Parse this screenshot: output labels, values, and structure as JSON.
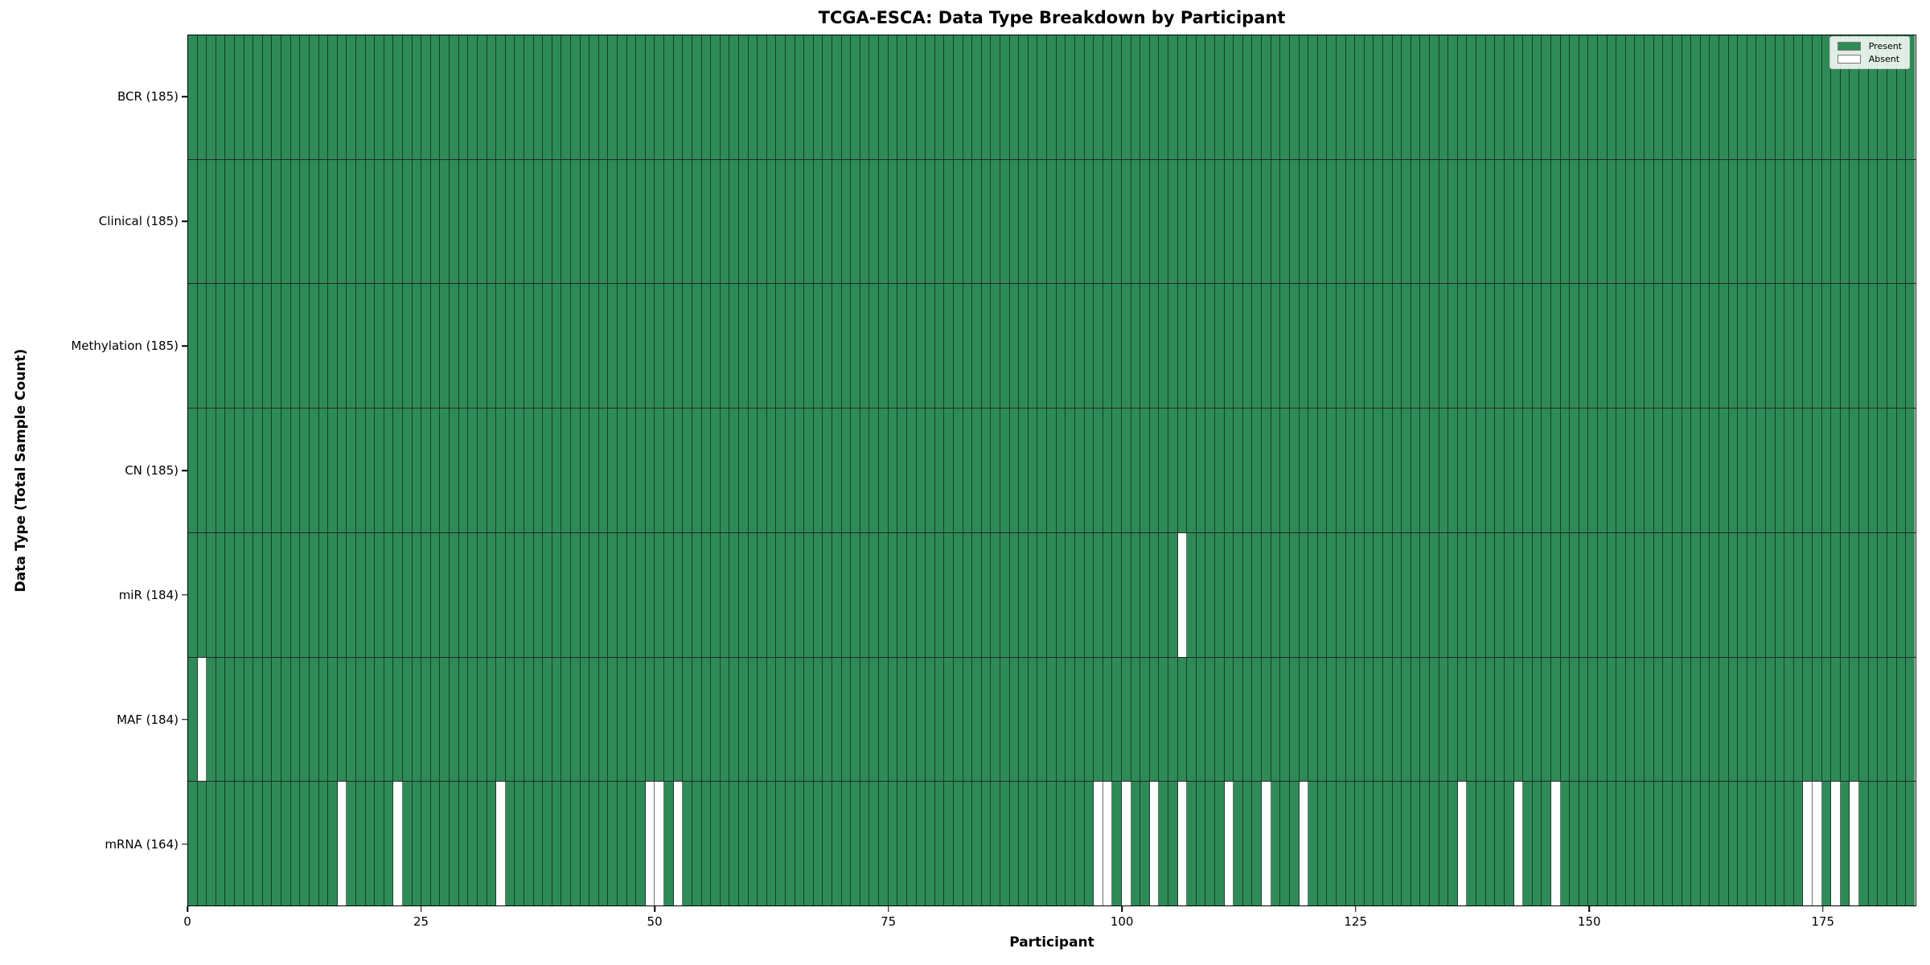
{
  "title": "TCGA-ESCA: Data Type Breakdown by Participant",
  "axes": {
    "x_label": "Participant",
    "y_label": "Data Type (Total Sample Count)"
  },
  "legend": {
    "position": "top-right",
    "entries": [
      {
        "label": "Present",
        "color": "#2e8b57"
      },
      {
        "label": "Absent",
        "color": "#ffffff"
      }
    ]
  },
  "colors": {
    "present": "#2e8b57",
    "absent": "#ffffff",
    "cell_edge": "rgba(0,0,0,0.55)",
    "row_divider": "rgba(0,0,0,0.85)",
    "spine": "#000000"
  },
  "chart_data": {
    "type": "heatmap",
    "encoding": "presence-absence matrix: green cell = data type present for participant, white cell = absent",
    "title": "TCGA-ESCA: Data Type Breakdown by Participant",
    "xlabel": "Participant",
    "ylabel": "Data Type (Total Sample Count)",
    "n_participants": 185,
    "x_range": [
      0,
      185
    ],
    "x_ticks": [
      0,
      25,
      50,
      75,
      100,
      125,
      150,
      175
    ],
    "grid": false,
    "legend_position": "upper right",
    "rows": [
      {
        "name": "BCR",
        "label": "BCR (185)",
        "total": 185,
        "absent_participants": []
      },
      {
        "name": "Clinical",
        "label": "Clinical (185)",
        "total": 185,
        "absent_participants": []
      },
      {
        "name": "Methylation",
        "label": "Methylation (185)",
        "total": 185,
        "absent_participants": []
      },
      {
        "name": "CN",
        "label": "CN (185)",
        "total": 185,
        "absent_participants": []
      },
      {
        "name": "miR",
        "label": "miR (184)",
        "total": 184,
        "absent_participants": [
          106
        ]
      },
      {
        "name": "MAF",
        "label": "MAF (184)",
        "total": 184,
        "absent_participants": [
          1
        ]
      },
      {
        "name": "mRNA",
        "label": "mRNA (164)",
        "total": 164,
        "absent_participants": [
          16,
          22,
          33,
          49,
          50,
          52,
          97,
          98,
          100,
          103,
          106,
          111,
          115,
          119,
          136,
          142,
          146,
          173,
          174,
          176,
          178
        ]
      }
    ]
  }
}
